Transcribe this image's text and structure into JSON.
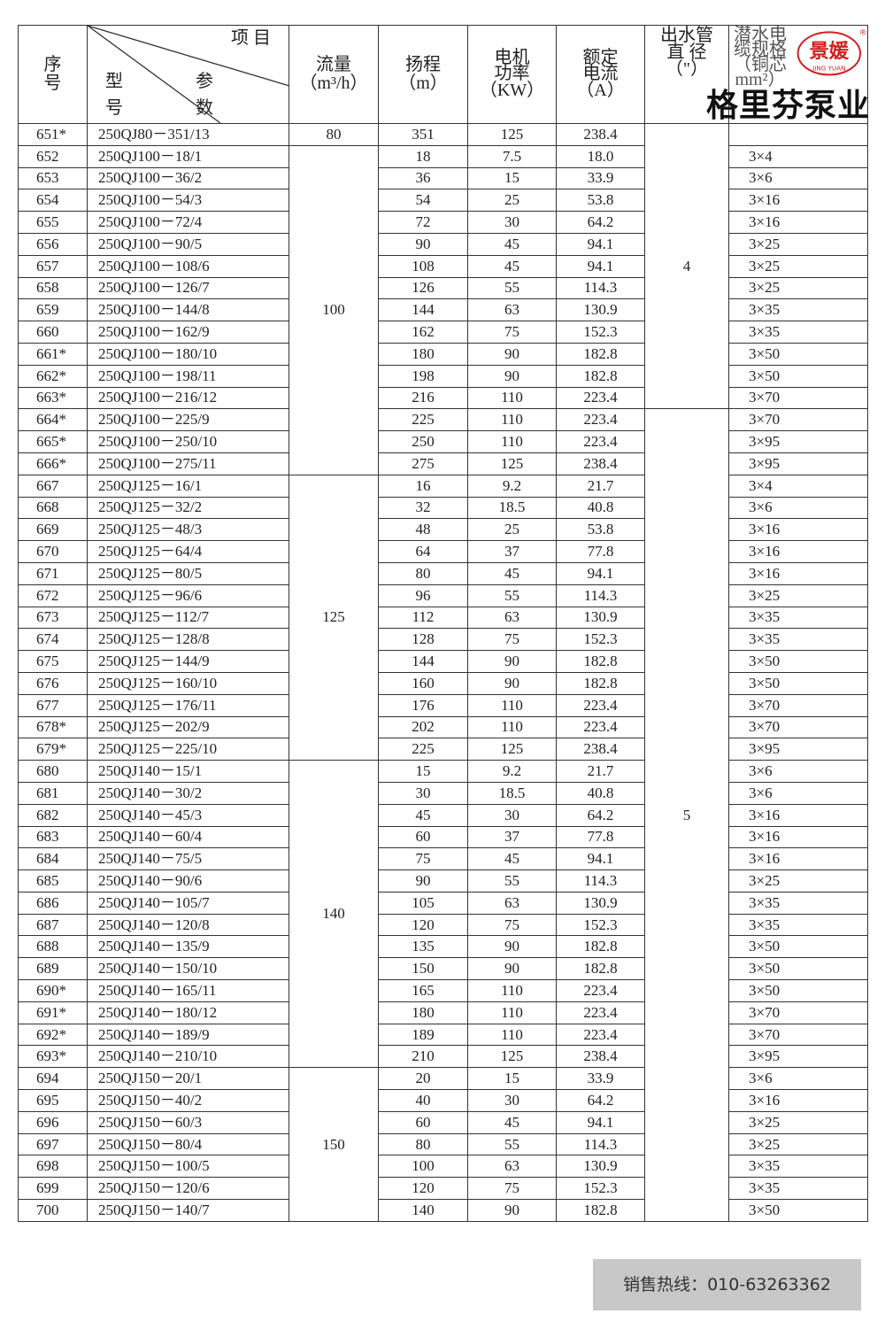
{
  "header": {
    "no": "序号",
    "item": "项 目",
    "model": "型 号",
    "param": "参 数",
    "flow": "流量",
    "flow_unit": "（m³/h）",
    "head": "扬程",
    "head_unit": "（m）",
    "power": "电机功率",
    "power_unit": "（KW）",
    "current": "额定电流",
    "current_unit": "（A）",
    "pipe": "出水管直 径",
    "pipe_unit": "（\"）",
    "cable": "潜水电缆规格",
    "cable_unit": "（铜芯mm²）"
  },
  "logo": {
    "text": "景媛",
    "sub": "JING YUAN",
    "reg": "®"
  },
  "brand": "格里芬泵业",
  "footer": "销售热线：010-63263362",
  "flow_groups": [
    {
      "value": "80",
      "rows": 1
    },
    {
      "value": "100",
      "rows": 15
    },
    {
      "value": "125",
      "rows": 13
    },
    {
      "value": "140",
      "rows": 14
    },
    {
      "value": "150",
      "rows": 7
    }
  ],
  "pipe_groups": [
    {
      "value": "4",
      "rows": 13
    },
    {
      "value": "5",
      "rows": 37
    }
  ],
  "rows": [
    [
      "651*",
      "250QJ80－351/13",
      "351",
      "125",
      "238.4",
      ""
    ],
    [
      "652",
      "250QJ100－18/1",
      "18",
      "7.5",
      "18.0",
      "3×4"
    ],
    [
      "653",
      "250QJ100－36/2",
      "36",
      "15",
      "33.9",
      "3×6"
    ],
    [
      "654",
      "250QJ100－54/3",
      "54",
      "25",
      "53.8",
      "3×16"
    ],
    [
      "655",
      "250QJ100－72/4",
      "72",
      "30",
      "64.2",
      "3×16"
    ],
    [
      "656",
      "250QJ100－90/5",
      "90",
      "45",
      "94.1",
      "3×25"
    ],
    [
      "657",
      "250QJ100－108/6",
      "108",
      "45",
      "94.1",
      "3×25"
    ],
    [
      "658",
      "250QJ100－126/7",
      "126",
      "55",
      "114.3",
      "3×25"
    ],
    [
      "659",
      "250QJ100－144/8",
      "144",
      "63",
      "130.9",
      "3×35"
    ],
    [
      "660",
      "250QJ100－162/9",
      "162",
      "75",
      "152.3",
      "3×35"
    ],
    [
      "661*",
      "250QJ100－180/10",
      "180",
      "90",
      "182.8",
      "3×50"
    ],
    [
      "662*",
      "250QJ100－198/11",
      "198",
      "90",
      "182.8",
      "3×50"
    ],
    [
      "663*",
      "250QJ100－216/12",
      "216",
      "110",
      "223.4",
      "3×70"
    ],
    [
      "664*",
      "250QJ100－225/9",
      "225",
      "110",
      "223.4",
      "3×70"
    ],
    [
      "665*",
      "250QJ100－250/10",
      "250",
      "110",
      "223.4",
      "3×95"
    ],
    [
      "666*",
      "250QJ100－275/11",
      "275",
      "125",
      "238.4",
      "3×95"
    ],
    [
      "667",
      "250QJ125－16/1",
      "16",
      "9.2",
      "21.7",
      "3×4"
    ],
    [
      "668",
      "250QJ125－32/2",
      "32",
      "18.5",
      "40.8",
      "3×6"
    ],
    [
      "669",
      "250QJ125－48/3",
      "48",
      "25",
      "53.8",
      "3×16"
    ],
    [
      "670",
      "250QJ125－64/4",
      "64",
      "37",
      "77.8",
      "3×16"
    ],
    [
      "671",
      "250QJ125－80/5",
      "80",
      "45",
      "94.1",
      "3×16"
    ],
    [
      "672",
      "250QJ125－96/6",
      "96",
      "55",
      "114.3",
      "3×25"
    ],
    [
      "673",
      "250QJ125－112/7",
      "112",
      "63",
      "130.9",
      "3×35"
    ],
    [
      "674",
      "250QJ125－128/8",
      "128",
      "75",
      "152.3",
      "3×35"
    ],
    [
      "675",
      "250QJ125－144/9",
      "144",
      "90",
      "182.8",
      "3×50"
    ],
    [
      "676",
      "250QJ125－160/10",
      "160",
      "90",
      "182.8",
      "3×50"
    ],
    [
      "677",
      "250QJ125－176/11",
      "176",
      "110",
      "223.4",
      "3×70"
    ],
    [
      "678*",
      "250QJ125－202/9",
      "202",
      "110",
      "223.4",
      "3×70"
    ],
    [
      "679*",
      "250QJ125－225/10",
      "225",
      "125",
      "238.4",
      "3×95"
    ],
    [
      "680",
      "250QJ140－15/1",
      "15",
      "9.2",
      "21.7",
      "3×6"
    ],
    [
      "681",
      "250QJ140－30/2",
      "30",
      "18.5",
      "40.8",
      "3×6"
    ],
    [
      "682",
      "250QJ140－45/3",
      "45",
      "30",
      "64.2",
      "3×16"
    ],
    [
      "683",
      "250QJ140－60/4",
      "60",
      "37",
      "77.8",
      "3×16"
    ],
    [
      "684",
      "250QJ140－75/5",
      "75",
      "45",
      "94.1",
      "3×16"
    ],
    [
      "685",
      "250QJ140－90/6",
      "90",
      "55",
      "114.3",
      "3×25"
    ],
    [
      "686",
      "250QJ140－105/7",
      "105",
      "63",
      "130.9",
      "3×35"
    ],
    [
      "687",
      "250QJ140－120/8",
      "120",
      "75",
      "152.3",
      "3×35"
    ],
    [
      "688",
      "250QJ140－135/9",
      "135",
      "90",
      "182.8",
      "3×50"
    ],
    [
      "689",
      "250QJ140－150/10",
      "150",
      "90",
      "182.8",
      "3×50"
    ],
    [
      "690*",
      "250QJ140－165/11",
      "165",
      "110",
      "223.4",
      "3×50"
    ],
    [
      "691*",
      "250QJ140－180/12",
      "180",
      "110",
      "223.4",
      "3×70"
    ],
    [
      "692*",
      "250QJ140－189/9",
      "189",
      "110",
      "223.4",
      "3×70"
    ],
    [
      "693*",
      "250QJ140－210/10",
      "210",
      "125",
      "238.4",
      "3×95"
    ],
    [
      "694",
      "250QJ150－20/1",
      "20",
      "15",
      "33.9",
      "3×6"
    ],
    [
      "695",
      "250QJ150－40/2",
      "40",
      "30",
      "64.2",
      "3×16"
    ],
    [
      "696",
      "250QJ150－60/3",
      "60",
      "45",
      "94.1",
      "3×25"
    ],
    [
      "697",
      "250QJ150－80/4",
      "80",
      "55",
      "114.3",
      "3×25"
    ],
    [
      "698",
      "250QJ150－100/5",
      "100",
      "63",
      "130.9",
      "3×35"
    ],
    [
      "699",
      "250QJ150－120/6",
      "120",
      "75",
      "152.3",
      "3×35"
    ],
    [
      "700",
      "250QJ150－140/7",
      "140",
      "90",
      "182.8",
      "3×50"
    ]
  ]
}
